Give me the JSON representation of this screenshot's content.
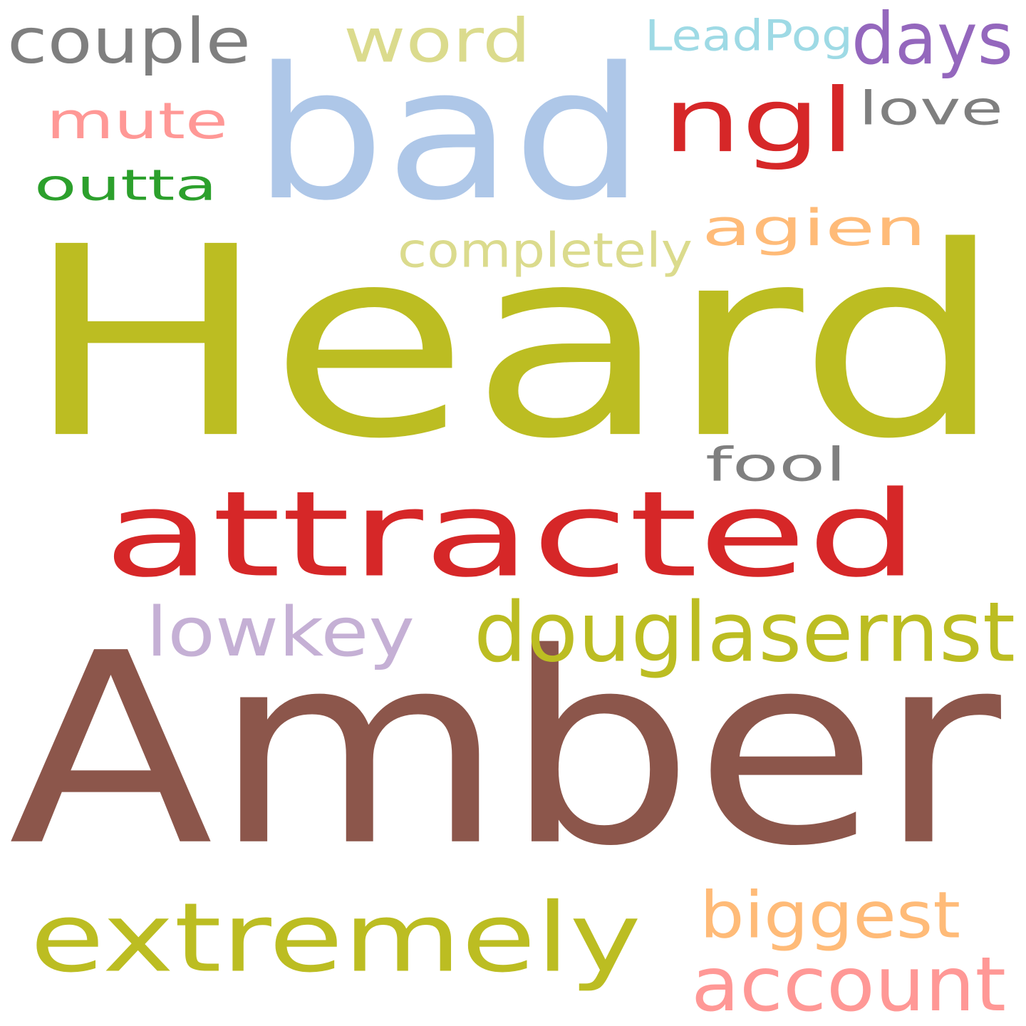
{
  "words": [
    {
      "key": "heard",
      "text": "Heard",
      "color": "#bcbd22"
    },
    {
      "key": "amber",
      "text": "Amber",
      "color": "#8c564b"
    },
    {
      "key": "bad",
      "text": "bad",
      "color": "#aec7e8"
    },
    {
      "key": "attracted",
      "text": "attracted",
      "color": "#d62728"
    },
    {
      "key": "extremely",
      "text": "extremely",
      "color": "#bcbd22"
    },
    {
      "key": "douglasernst",
      "text": "douglasernst",
      "color": "#bcbd22"
    },
    {
      "key": "ngl",
      "text": "ngl",
      "color": "#d62728"
    },
    {
      "key": "account",
      "text": "account",
      "color": "#ff9896"
    },
    {
      "key": "lowkey",
      "text": "lowkey",
      "color": "#c5b0d5"
    },
    {
      "key": "agien",
      "text": "agien",
      "color": "#ffbb78"
    },
    {
      "key": "couple",
      "text": "couple",
      "color": "#7f7f7f"
    },
    {
      "key": "word",
      "text": "word",
      "color": "#dbdb8d"
    },
    {
      "key": "days",
      "text": "days",
      "color": "#9467bd"
    },
    {
      "key": "mute",
      "text": "mute",
      "color": "#ff9896"
    },
    {
      "key": "biggest",
      "text": "biggest",
      "color": "#ffbb78"
    },
    {
      "key": "fool",
      "text": "fool",
      "color": "#7f7f7f"
    },
    {
      "key": "love",
      "text": "love",
      "color": "#7f7f7f"
    },
    {
      "key": "outta",
      "text": "outta",
      "color": "#2ca02c"
    },
    {
      "key": "leadpog",
      "text": "LeadPog",
      "color": "#9edae5"
    },
    {
      "key": "completely",
      "text": "completely",
      "color": "#dbdb8d"
    }
  ]
}
